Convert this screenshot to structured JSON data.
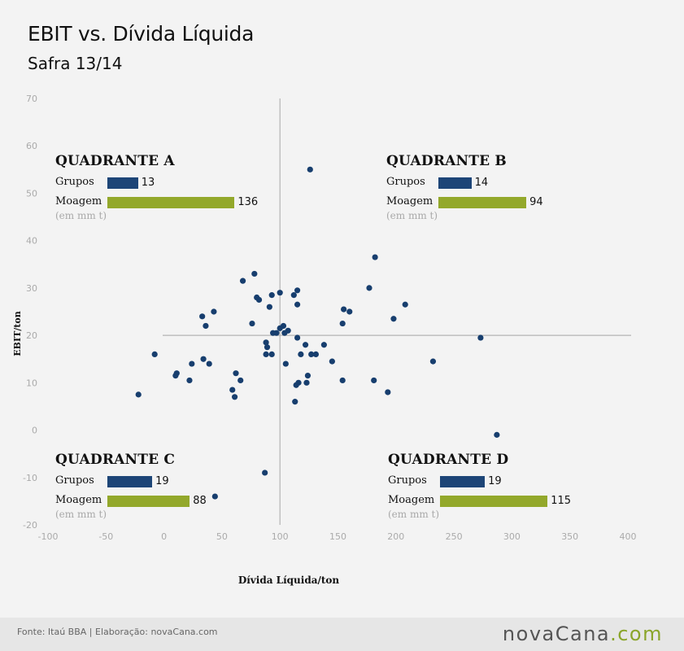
{
  "header": {
    "title": "EBIT vs. Dívida Líquida",
    "subtitle": "Safra 13/14"
  },
  "colors": {
    "point": "#173e6e",
    "grupos_bar": "#1d4577",
    "moagem_bar": "#93a82b",
    "tick": "#aaaaaa",
    "axis": "#b3b3b3"
  },
  "quadrants": {
    "a": {
      "title": "QUADRANTE A",
      "grupos_label": "Grupos",
      "grupos": 13,
      "moagem_label": "Moagem",
      "moagem": 136,
      "note": "(em mm t)"
    },
    "b": {
      "title": "QUADRANTE B",
      "grupos_label": "Grupos",
      "grupos": 14,
      "moagem_label": "Moagem",
      "moagem": 94,
      "note": "(em mm t)"
    },
    "c": {
      "title": "QUADRANTE C",
      "grupos_label": "Grupos",
      "grupos": 19,
      "moagem_label": "Moagem",
      "moagem": 88,
      "note": "(em mm t)"
    },
    "d": {
      "title": "QUADRANTE D",
      "grupos_label": "Grupos",
      "grupos": 19,
      "moagem_label": "Moagem",
      "moagem": 115,
      "note": "(em mm t)"
    }
  },
  "chart_data": {
    "type": "scatter",
    "xlabel": "Dívida Líquida/ton",
    "ylabel": "EBIT/ton",
    "xlim": [
      -100,
      400
    ],
    "ylim": [
      -20,
      70
    ],
    "xticks": [
      -100,
      -50,
      0,
      50,
      100,
      150,
      200,
      250,
      300,
      350,
      400
    ],
    "yticks": [
      -20,
      -10,
      0,
      10,
      20,
      30,
      40,
      50,
      60,
      70
    ],
    "divider_x": 100,
    "divider_y": 20,
    "grid": false,
    "points": [
      [
        126,
        55
      ],
      [
        182,
        36.5
      ],
      [
        78,
        33
      ],
      [
        68,
        31.5
      ],
      [
        115,
        29.5
      ],
      [
        100,
        29
      ],
      [
        177,
        30
      ],
      [
        80,
        28
      ],
      [
        82,
        27.5
      ],
      [
        93,
        28.5
      ],
      [
        112,
        28.5
      ],
      [
        91,
        26
      ],
      [
        115,
        26.5
      ],
      [
        208,
        26.5
      ],
      [
        43,
        25
      ],
      [
        155,
        25.5
      ],
      [
        160,
        25
      ],
      [
        33,
        24
      ],
      [
        198,
        23.5
      ],
      [
        76,
        22.5
      ],
      [
        154,
        22.5
      ],
      [
        36,
        22
      ],
      [
        103,
        22
      ],
      [
        100,
        21.5
      ],
      [
        107,
        21
      ],
      [
        97,
        20.5
      ],
      [
        94,
        20.5
      ],
      [
        104,
        20.5
      ],
      [
        115,
        19.5
      ],
      [
        273,
        19.5
      ],
      [
        88,
        18.5
      ],
      [
        89,
        17.5
      ],
      [
        122,
        18
      ],
      [
        138,
        18
      ],
      [
        -8,
        16
      ],
      [
        88,
        16
      ],
      [
        93,
        16
      ],
      [
        118,
        16
      ],
      [
        127,
        16
      ],
      [
        131,
        16
      ],
      [
        34,
        15
      ],
      [
        145,
        14.5
      ],
      [
        232,
        14.5
      ],
      [
        24,
        14
      ],
      [
        39,
        14
      ],
      [
        105,
        14
      ],
      [
        62,
        12
      ],
      [
        11,
        12
      ],
      [
        10,
        11.5
      ],
      [
        124,
        11.5
      ],
      [
        22,
        10.5
      ],
      [
        66,
        10.5
      ],
      [
        154,
        10.5
      ],
      [
        181,
        10.5
      ],
      [
        116,
        10
      ],
      [
        114,
        9.5
      ],
      [
        123,
        10
      ],
      [
        59,
        8.5
      ],
      [
        -22,
        7.5
      ],
      [
        193,
        8
      ],
      [
        61,
        7
      ],
      [
        113,
        6
      ],
      [
        287,
        -1
      ],
      [
        87,
        -9
      ],
      [
        44,
        -14
      ]
    ]
  },
  "footer": {
    "source": "Fonte: Itaú BBA | Elaboração: novaCana.com",
    "logo_main": "novaCana",
    "logo_suffix": ".com"
  }
}
